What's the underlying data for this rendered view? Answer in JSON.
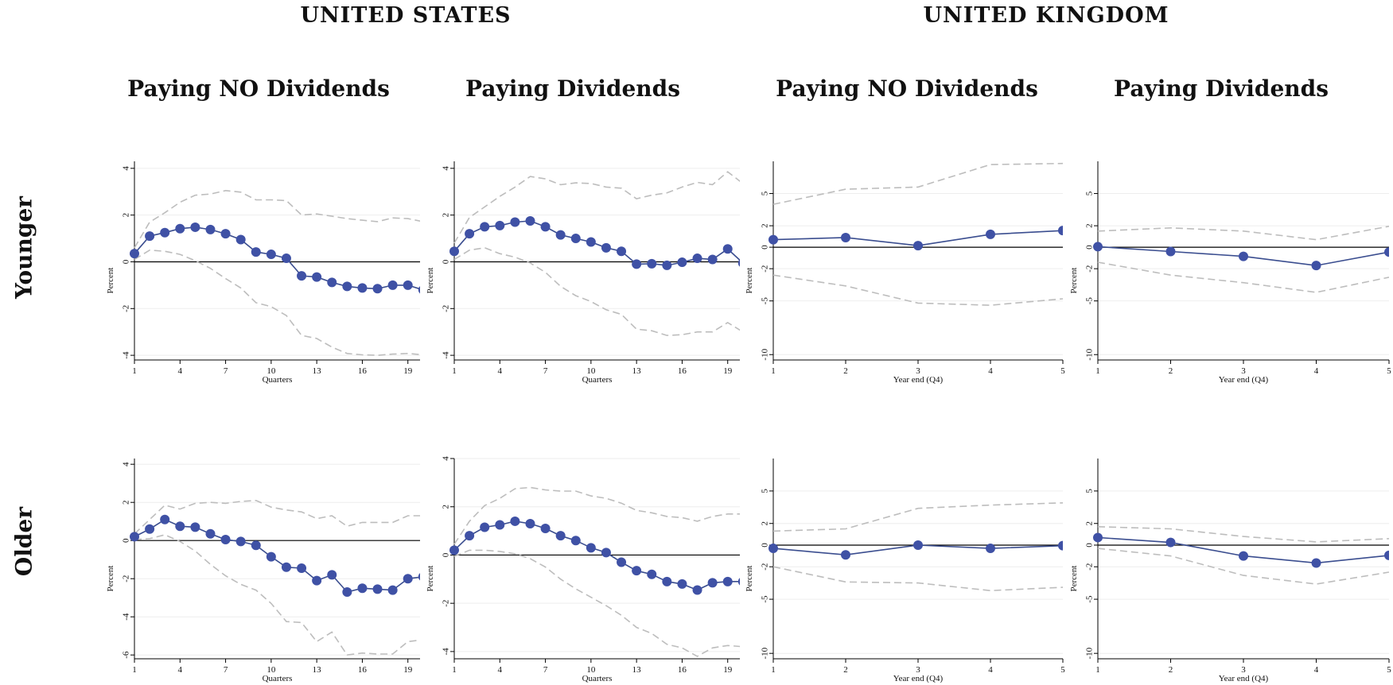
{
  "headers": {
    "us": "UNITED STATES",
    "uk": "UNITED KINGDOM"
  },
  "column_titles": [
    "Paying NO Dividends",
    "Paying Dividends",
    "Paying NO Dividends",
    "Paying Dividends"
  ],
  "row_labels": [
    "Younger",
    "Older"
  ],
  "colors": {
    "line": "#3a4d8f",
    "marker": "#3f51a5",
    "ci": "#bdbdbd",
    "zero": "#000000",
    "grid": "#eeeeee"
  },
  "chart_data": [
    {
      "id": "us-younger-nodiv",
      "type": "line",
      "xlabel": "Quarters",
      "ylabel": "Percent",
      "xlim": [
        1,
        19.8
      ],
      "ylim": [
        -4.2,
        4.3
      ],
      "xticks": [
        1,
        4,
        7,
        10,
        13,
        16,
        19
      ],
      "yticks": [
        -4,
        -2,
        0,
        2,
        4
      ],
      "x": [
        1,
        2,
        3,
        4,
        5,
        6,
        7,
        8,
        9,
        10,
        11,
        12,
        13,
        14,
        15,
        16,
        17,
        18,
        19,
        20
      ],
      "estimate": [
        0.35,
        1.1,
        1.25,
        1.42,
        1.48,
        1.38,
        1.2,
        0.95,
        0.42,
        0.32,
        0.15,
        -0.6,
        -0.65,
        -0.88,
        -1.05,
        -1.12,
        -1.15,
        -1.0,
        -1.0,
        -1.2
      ],
      "upper": [
        0.6,
        1.7,
        2.1,
        2.55,
        2.85,
        2.9,
        3.05,
        2.98,
        2.65,
        2.65,
        2.62,
        2.0,
        2.05,
        1.95,
        1.85,
        1.78,
        1.72,
        1.88,
        1.85,
        1.72
      ],
      "lower": [
        0.1,
        0.5,
        0.45,
        0.32,
        0.05,
        -0.28,
        -0.72,
        -1.12,
        -1.75,
        -1.92,
        -2.3,
        -3.15,
        -3.28,
        -3.65,
        -3.92,
        -3.98,
        -4.0,
        -3.95,
        -3.92,
        -3.98
      ]
    },
    {
      "id": "us-younger-div",
      "type": "line",
      "xlabel": "Quarters",
      "ylabel": "Percent",
      "xlim": [
        1,
        19.8
      ],
      "ylim": [
        -4.2,
        4.3
      ],
      "xticks": [
        1,
        4,
        7,
        10,
        13,
        16,
        19
      ],
      "yticks": [
        -4,
        -2,
        0,
        2,
        4
      ],
      "x": [
        1,
        2,
        3,
        4,
        5,
        6,
        7,
        8,
        9,
        10,
        11,
        12,
        13,
        14,
        15,
        16,
        17,
        18,
        19,
        20
      ],
      "estimate": [
        0.45,
        1.2,
        1.5,
        1.55,
        1.7,
        1.75,
        1.5,
        1.15,
        1.0,
        0.85,
        0.6,
        0.45,
        -0.1,
        -0.08,
        -0.15,
        -0.02,
        0.15,
        0.1,
        0.55,
        -0.05
      ],
      "upper": [
        0.8,
        1.9,
        2.35,
        2.8,
        3.2,
        3.65,
        3.55,
        3.3,
        3.38,
        3.35,
        3.2,
        3.15,
        2.7,
        2.85,
        2.95,
        3.2,
        3.4,
        3.3,
        3.85,
        3.35
      ],
      "lower": [
        0.1,
        0.5,
        0.6,
        0.35,
        0.2,
        -0.05,
        -0.45,
        -1.05,
        -1.45,
        -1.7,
        -2.05,
        -2.25,
        -2.88,
        -2.95,
        -3.15,
        -3.12,
        -3.0,
        -3.0,
        -2.6,
        -3.0
      ]
    },
    {
      "id": "uk-younger-nodiv",
      "type": "line",
      "xlabel": "Year end (Q4)",
      "ylabel": "Percent",
      "xlim": [
        1,
        5
      ],
      "ylim": [
        -10.5,
        8
      ],
      "xticks": [
        1,
        2,
        3,
        4,
        5
      ],
      "yticks": [
        -10,
        -5,
        -2,
        0,
        2,
        5
      ],
      "x": [
        1,
        2,
        3,
        4,
        5
      ],
      "estimate": [
        0.7,
        0.9,
        0.15,
        1.2,
        1.55
      ],
      "upper": [
        4.0,
        5.4,
        5.6,
        7.7,
        7.8
      ],
      "lower": [
        -2.6,
        -3.6,
        -5.2,
        -5.4,
        -4.8
      ]
    },
    {
      "id": "uk-younger-div",
      "type": "line",
      "xlabel": "Year end (Q4)",
      "ylabel": "Percent",
      "xlim": [
        1,
        5
      ],
      "ylim": [
        -10.5,
        8
      ],
      "xticks": [
        1,
        2,
        3,
        4,
        5
      ],
      "yticks": [
        -10,
        -5,
        -2,
        0,
        2,
        5
      ],
      "x": [
        1,
        2,
        3,
        4,
        5
      ],
      "estimate": [
        0.05,
        -0.4,
        -0.85,
        -1.7,
        -0.45
      ],
      "upper": [
        1.5,
        1.8,
        1.5,
        0.7,
        1.95
      ],
      "lower": [
        -1.4,
        -2.6,
        -3.3,
        -4.2,
        -2.8
      ]
    },
    {
      "id": "us-older-nodiv",
      "type": "line",
      "xlabel": "Quarters",
      "ylabel": "Percent",
      "xlim": [
        1,
        19.8
      ],
      "ylim": [
        -6.2,
        4.3
      ],
      "xticks": [
        1,
        4,
        7,
        10,
        13,
        16,
        19
      ],
      "yticks": [
        -6,
        -4,
        -2,
        0,
        2,
        4
      ],
      "x": [
        1,
        2,
        3,
        4,
        5,
        6,
        7,
        8,
        9,
        10,
        11,
        12,
        13,
        14,
        15,
        16,
        17,
        18,
        19,
        20
      ],
      "estimate": [
        0.2,
        0.6,
        1.1,
        0.75,
        0.7,
        0.35,
        0.05,
        -0.05,
        -0.25,
        -0.85,
        -1.4,
        -1.45,
        -2.1,
        -1.8,
        -2.7,
        -2.5,
        -2.55,
        -2.6,
        -2.0,
        -1.9
      ],
      "upper": [
        0.35,
        1.1,
        1.85,
        1.65,
        1.95,
        2.0,
        1.95,
        2.05,
        2.1,
        1.75,
        1.6,
        1.5,
        1.15,
        1.3,
        0.75,
        0.95,
        0.95,
        0.95,
        1.3,
        1.3
      ],
      "lower": [
        0.05,
        0.1,
        0.3,
        -0.05,
        -0.55,
        -1.25,
        -1.85,
        -2.3,
        -2.6,
        -3.3,
        -4.25,
        -4.3,
        -5.3,
        -4.8,
        -6.0,
        -5.9,
        -5.95,
        -5.95,
        -5.3,
        -5.2
      ]
    },
    {
      "id": "us-older-div",
      "type": "line",
      "xlabel": "Quarters",
      "ylabel": "Percent",
      "xlim": [
        1,
        19.8
      ],
      "ylim": [
        -4.3,
        4.0
      ],
      "xticks": [
        1,
        4,
        7,
        10,
        13,
        16,
        19
      ],
      "yticks": [
        -4,
        -2,
        0,
        2,
        4
      ],
      "x": [
        1,
        2,
        3,
        4,
        5,
        6,
        7,
        8,
        9,
        10,
        11,
        12,
        13,
        14,
        15,
        16,
        17,
        18,
        19,
        20
      ],
      "estimate": [
        0.2,
        0.8,
        1.15,
        1.25,
        1.4,
        1.3,
        1.1,
        0.8,
        0.6,
        0.3,
        0.1,
        -0.3,
        -0.65,
        -0.8,
        -1.1,
        -1.2,
        -1.45,
        -1.15,
        -1.1,
        -1.1
      ],
      "upper": [
        0.45,
        1.4,
        2.05,
        2.35,
        2.75,
        2.8,
        2.7,
        2.65,
        2.65,
        2.45,
        2.35,
        2.15,
        1.85,
        1.75,
        1.6,
        1.55,
        1.4,
        1.6,
        1.7,
        1.7
      ],
      "lower": [
        -0.05,
        0.2,
        0.2,
        0.15,
        0.05,
        -0.15,
        -0.5,
        -1.0,
        -1.4,
        -1.75,
        -2.1,
        -2.5,
        -3.0,
        -3.25,
        -3.7,
        -3.85,
        -4.2,
        -3.85,
        -3.75,
        -3.8
      ]
    },
    {
      "id": "uk-older-nodiv",
      "type": "line",
      "xlabel": "Year end (Q4)",
      "ylabel": "Percent",
      "xlim": [
        1,
        5
      ],
      "ylim": [
        -10.5,
        8
      ],
      "xticks": [
        1,
        2,
        3,
        4,
        5
      ],
      "yticks": [
        -10,
        -5,
        -2,
        0,
        2,
        5
      ],
      "x": [
        1,
        2,
        3,
        4,
        5
      ],
      "estimate": [
        -0.3,
        -0.9,
        0.0,
        -0.3,
        -0.05
      ],
      "upper": [
        1.3,
        1.5,
        3.4,
        3.7,
        3.9
      ],
      "lower": [
        -2.0,
        -3.4,
        -3.5,
        -4.2,
        -3.9
      ]
    },
    {
      "id": "uk-older-div",
      "type": "line",
      "xlabel": "Year end (Q4)",
      "ylabel": "Percent",
      "xlim": [
        1,
        5
      ],
      "ylim": [
        -10.5,
        8
      ],
      "xticks": [
        1,
        2,
        3,
        4,
        5
      ],
      "yticks": [
        -10,
        -5,
        -2,
        0,
        2,
        5
      ],
      "x": [
        1,
        2,
        3,
        4,
        5
      ],
      "estimate": [
        0.7,
        0.25,
        -1.0,
        -1.65,
        -0.95
      ],
      "upper": [
        1.7,
        1.5,
        0.8,
        0.3,
        0.6
      ],
      "lower": [
        -0.3,
        -1.0,
        -2.8,
        -3.6,
        -2.5
      ]
    }
  ]
}
